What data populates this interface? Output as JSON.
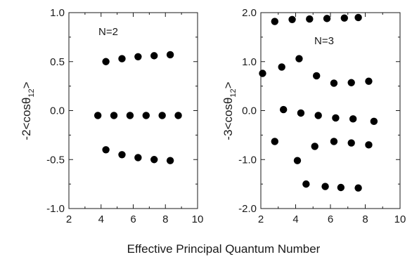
{
  "shared_xlabel": "Effective Principal Quantum Number",
  "chart_data": [
    {
      "type": "scatter",
      "ylabel": "-2<cosθ_12>",
      "annotation": "N=2",
      "xlim": [
        2,
        10
      ],
      "ylim": [
        -1.0,
        1.0
      ],
      "xticks": [
        "2",
        "4",
        "6",
        "8",
        "10"
      ],
      "yticks": [
        "1.0",
        "0.5",
        "0.0",
        "-0.5",
        "-1.0"
      ],
      "series": [
        {
          "x": [
            4.3,
            5.3,
            6.3,
            7.3,
            8.3
          ],
          "y": [
            0.5,
            0.53,
            0.55,
            0.56,
            0.57
          ]
        },
        {
          "x": [
            3.8,
            4.8,
            5.8,
            6.8,
            7.8,
            8.8
          ],
          "y": [
            -0.05,
            -0.05,
            -0.05,
            -0.05,
            -0.05,
            -0.05
          ]
        },
        {
          "x": [
            4.3,
            5.3,
            6.3,
            7.3,
            8.3
          ],
          "y": [
            -0.4,
            -0.45,
            -0.48,
            -0.5,
            -0.51
          ]
        }
      ]
    },
    {
      "type": "scatter",
      "ylabel": "-3<cosθ_12>",
      "annotation": "N=3",
      "xlim": [
        2,
        10
      ],
      "ylim": [
        -2.0,
        2.0
      ],
      "xticks": [
        "2",
        "4",
        "6",
        "8",
        "10"
      ],
      "yticks": [
        "2.0",
        "1.0",
        "0.0",
        "-1.0",
        "-2.0"
      ],
      "series": [
        {
          "x": [
            2.8,
            3.8,
            4.8,
            5.8,
            6.8,
            7.6
          ],
          "y": [
            1.82,
            1.86,
            1.87,
            1.88,
            1.89,
            1.9
          ]
        },
        {
          "x": [
            2.1,
            3.2,
            4.2,
            5.2,
            6.2,
            7.2,
            8.2
          ],
          "y": [
            0.76,
            0.89,
            1.06,
            0.71,
            0.56,
            0.57,
            0.6
          ]
        },
        {
          "x": [
            3.3,
            4.3,
            5.3,
            6.3,
            7.3,
            8.5
          ],
          "y": [
            0.02,
            -0.05,
            -0.1,
            -0.15,
            -0.17,
            -0.22
          ]
        },
        {
          "x": [
            2.8,
            4.1,
            5.1,
            6.2,
            7.2,
            8.2
          ],
          "y": [
            -0.63,
            -1.02,
            -0.73,
            -0.63,
            -0.66,
            -0.7
          ]
        },
        {
          "x": [
            4.6,
            5.7,
            6.6,
            7.6
          ],
          "y": [
            -1.5,
            -1.55,
            -1.57,
            -1.58
          ]
        }
      ]
    }
  ]
}
